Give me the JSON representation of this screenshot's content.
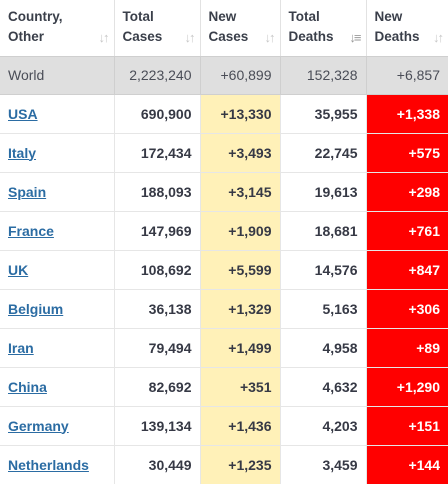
{
  "headers": {
    "country": [
      "Country,",
      "Other"
    ],
    "total_cases": [
      "Total",
      "Cases"
    ],
    "new_cases": [
      "New",
      "Cases"
    ],
    "total_deaths": [
      "Total",
      "Deaths"
    ],
    "new_deaths": [
      "New",
      "Deaths"
    ]
  },
  "sort_icons": {
    "default": "sort-icon",
    "active": "sort-descending-icon",
    "active_column": "total_deaths"
  },
  "world": {
    "country": "World",
    "total_cases": "2,223,240",
    "new_cases": "+60,899",
    "total_deaths": "152,328",
    "new_deaths": "+6,857"
  },
  "rows": [
    {
      "country": "USA",
      "total_cases": "690,900",
      "new_cases": "+13,330",
      "total_deaths": "35,955",
      "new_deaths": "+1,338"
    },
    {
      "country": "Italy",
      "total_cases": "172,434",
      "new_cases": "+3,493",
      "total_deaths": "22,745",
      "new_deaths": "+575"
    },
    {
      "country": "Spain",
      "total_cases": "188,093",
      "new_cases": "+3,145",
      "total_deaths": "19,613",
      "new_deaths": "+298"
    },
    {
      "country": "France",
      "total_cases": "147,969",
      "new_cases": "+1,909",
      "total_deaths": "18,681",
      "new_deaths": "+761"
    },
    {
      "country": "UK",
      "total_cases": "108,692",
      "new_cases": "+5,599",
      "total_deaths": "14,576",
      "new_deaths": "+847"
    },
    {
      "country": "Belgium",
      "total_cases": "36,138",
      "new_cases": "+1,329",
      "total_deaths": "5,163",
      "new_deaths": "+306"
    },
    {
      "country": "Iran",
      "total_cases": "79,494",
      "new_cases": "+1,499",
      "total_deaths": "4,958",
      "new_deaths": "+89"
    },
    {
      "country": "China",
      "total_cases": "82,692",
      "new_cases": "+351",
      "total_deaths": "4,632",
      "new_deaths": "+1,290"
    },
    {
      "country": "Germany",
      "total_cases": "139,134",
      "new_cases": "+1,436",
      "total_deaths": "4,203",
      "new_deaths": "+151"
    },
    {
      "country": "Netherlands",
      "total_cases": "30,449",
      "new_cases": "+1,235",
      "total_deaths": "3,459",
      "new_deaths": "+144"
    }
  ],
  "colors": {
    "new_cases_bg": "#fff1b8",
    "new_deaths_bg": "#ff0000",
    "world_row_bg": "#dfdfdf",
    "link": "#2b6ca3"
  }
}
